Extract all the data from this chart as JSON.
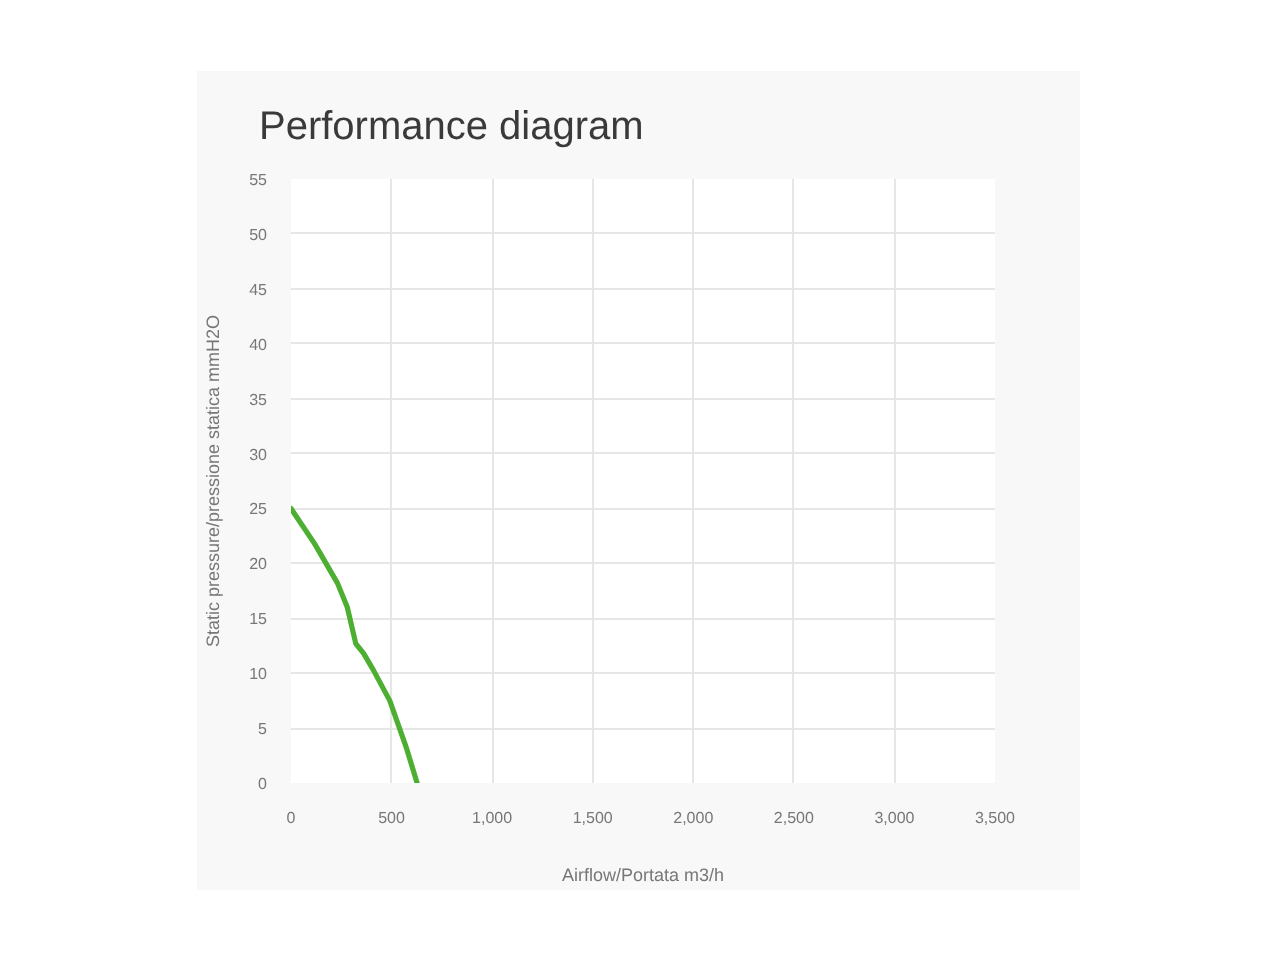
{
  "chart_data": {
    "type": "line",
    "title": "Performance diagram",
    "xlabel": "Airflow/Portata m3/h",
    "ylabel": "Static pressure/pressione statica mmH2O",
    "x": [
      0,
      117,
      231,
      280,
      322,
      361,
      409,
      491,
      572,
      627
    ],
    "series": [
      {
        "color": "#4caf32",
        "values": [
          25,
          21.8,
          18.2,
          16,
          12.7,
          11.8,
          10.3,
          7.5,
          3.3,
          0
        ]
      }
    ],
    "xlim": [
      0,
      3500
    ],
    "xticks": [
      0,
      500,
      {
        "value": 1000,
        "label": "1,000"
      },
      {
        "value": 1500,
        "label": "1,500"
      },
      {
        "value": 2000,
        "label": "2,000"
      },
      {
        "value": 2500,
        "label": "2,500"
      },
      {
        "value": 3000,
        "label": "3,000"
      },
      {
        "value": 3500,
        "label": "3,500"
      }
    ],
    "ylim": [
      0,
      55
    ],
    "yticks": [
      0,
      5,
      10,
      15,
      20,
      25,
      30,
      35,
      40,
      45,
      50,
      55
    ],
    "grid": true,
    "line_style": "solid"
  }
}
